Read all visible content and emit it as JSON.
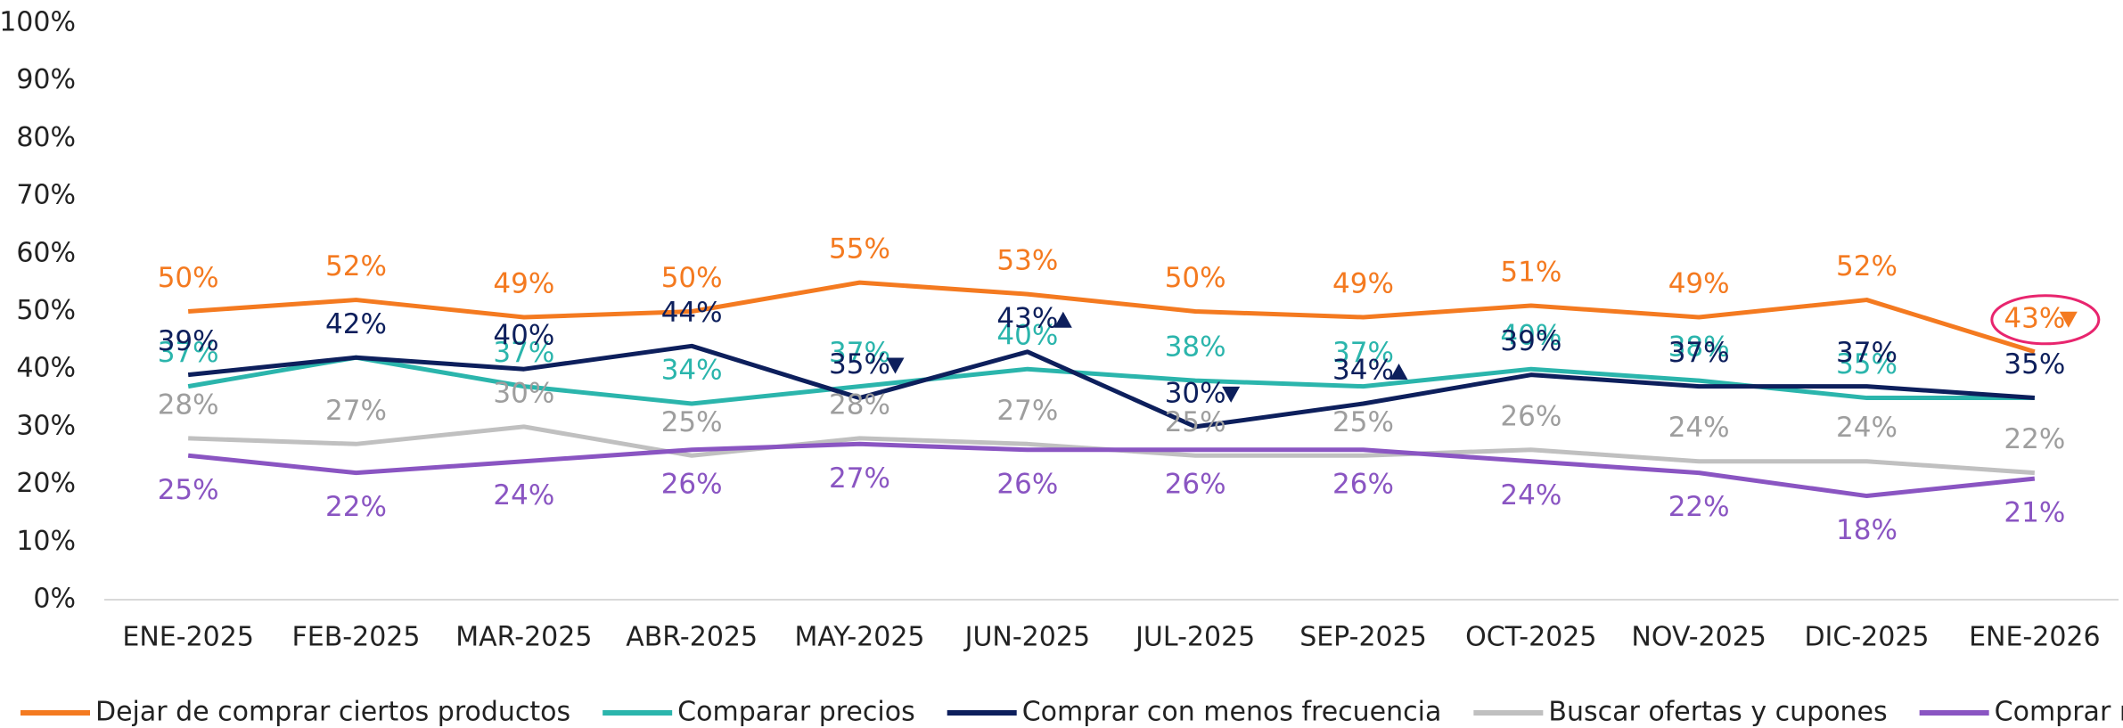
{
  "chart_data": {
    "type": "line",
    "categories": [
      "ENE-2025",
      "FEB-2025",
      "MAR-2025",
      "ABR-2025",
      "MAY-2025",
      "JUN-2025",
      "JUL-2025",
      "SEP-2025",
      "OCT-2025",
      "NOV-2025",
      "DIC-2025",
      "ENE-2026"
    ],
    "series": [
      {
        "name": "Dejar de comprar ciertos productos",
        "color": "#f47a20",
        "values": [
          50,
          52,
          49,
          50,
          55,
          53,
          50,
          49,
          51,
          49,
          52,
          43
        ],
        "value_labels": [
          "50%",
          "52%",
          "49%",
          "50%",
          "55%",
          "53%",
          "50%",
          "49%",
          "51%",
          "49%",
          "52%",
          "43%"
        ]
      },
      {
        "name": "Comparar precios",
        "color": "#2bb5ac",
        "values": [
          37,
          42,
          37,
          34,
          37,
          40,
          38,
          37,
          40,
          38,
          35,
          35
        ],
        "value_labels": [
          "37%",
          null,
          "37%",
          "34%",
          "37%",
          "40%",
          "38%",
          "37%",
          "40%",
          "38%",
          "35%",
          null
        ]
      },
      {
        "name": "Comprar con menos frecuencia",
        "color": "#0d1f5c",
        "values": [
          39,
          42,
          40,
          44,
          35,
          43,
          30,
          34,
          39,
          37,
          37,
          35
        ],
        "value_labels": [
          "39%",
          "42%",
          "40%",
          "44%",
          "35%",
          "43%",
          "30%",
          "34%",
          "39%",
          "37%",
          "37%",
          "35%"
        ]
      },
      {
        "name": "Buscar ofertas y cupones",
        "color": "#c0c0c0",
        "values": [
          28,
          27,
          30,
          25,
          28,
          27,
          25,
          25,
          26,
          24,
          24,
          22
        ],
        "value_labels": [
          "28%",
          "27%",
          "30%",
          "25%",
          "28%",
          "27%",
          "25%",
          "25%",
          "26%",
          "24%",
          "24%",
          "22%"
        ]
      },
      {
        "name": "Comprar marcas similares",
        "color": "#8a55c2",
        "values": [
          25,
          22,
          24,
          26,
          27,
          26,
          26,
          26,
          24,
          22,
          18,
          21
        ],
        "value_labels": [
          "25%",
          "22%",
          "24%",
          "26%",
          "27%",
          "26%",
          "26%",
          "26%",
          "24%",
          "22%",
          "18%",
          "21%"
        ]
      }
    ],
    "ylim": [
      0,
      100
    ],
    "yticks": [
      {
        "value": 0,
        "label": "0%"
      },
      {
        "value": 10,
        "label": "10%"
      },
      {
        "value": 20,
        "label": "20%"
      },
      {
        "value": 30,
        "label": "30%"
      },
      {
        "value": 40,
        "label": "40%"
      },
      {
        "value": 50,
        "label": "50%"
      },
      {
        "value": 60,
        "label": "60%"
      },
      {
        "value": 70,
        "label": "70%"
      },
      {
        "value": 80,
        "label": "80%"
      },
      {
        "value": 90,
        "label": "90%"
      },
      {
        "value": 100,
        "label": "100%"
      }
    ],
    "grid": false,
    "legend": "bottom"
  }
}
